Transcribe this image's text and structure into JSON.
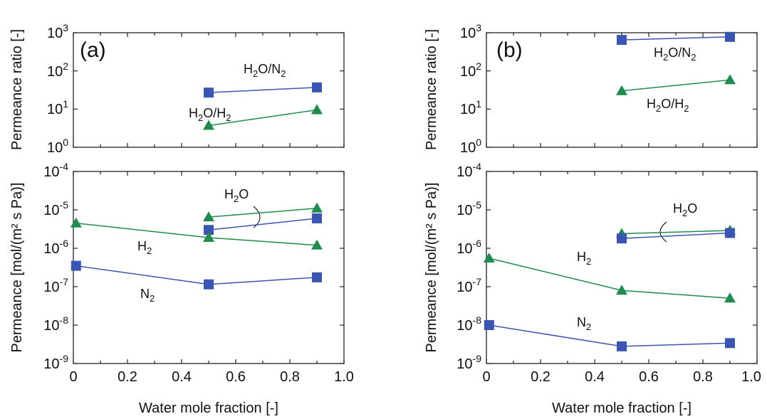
{
  "chart_data": [
    {
      "panel": "(a)",
      "type": "line",
      "xlabel": "Water mole fraction [-]",
      "xlim": [
        0,
        1.0
      ],
      "xticks": [
        "0",
        "0.2",
        "0.4",
        "0.6",
        "0.8",
        "1.0"
      ],
      "subplots": [
        {
          "name": "ratio",
          "ylabel": "Permeance ratio [-]",
          "yscale": "log",
          "ylim": [
            1,
            1000
          ],
          "series": [
            {
              "name": "H2O/N2",
              "label_main": "H",
              "label_sub1": "2",
              "label_mid": "O/N",
              "label_sub2": "2",
              "marker": "square",
              "color": "#3b55b3",
              "x": [
                0.5,
                0.9
              ],
              "y": [
                27,
                37
              ]
            },
            {
              "name": "H2O/H2",
              "label_main": "H",
              "label_sub1": "2",
              "label_mid": "O/H",
              "label_sub2": "2",
              "marker": "triangle",
              "color": "#1f8b4c",
              "x": [
                0.5,
                0.9
              ],
              "y": [
                3.7,
                9.5
              ]
            }
          ]
        },
        {
          "name": "permeance",
          "ylabel": "Permeance [mol/(m² s Pa)]",
          "yscale": "log",
          "ylim": [
            1e-09,
            0.0001
          ],
          "series": [
            {
              "name": "H2O (triangle)",
              "marker": "triangle",
              "color": "#1f8b4c",
              "x": [
                0.5,
                0.9
              ],
              "y": [
                6.5e-06,
                1.1e-05
              ]
            },
            {
              "name": "H2O (square)",
              "marker": "square",
              "color": "#3b55b3",
              "x": [
                0.5,
                0.9
              ],
              "y": [
                3e-06,
                6e-06
              ]
            },
            {
              "name": "H2",
              "marker": "triangle",
              "color": "#1f8b4c",
              "x": [
                0.01,
                0.5,
                0.9
              ],
              "y": [
                4.5e-06,
                1.9e-06,
                1.2e-06
              ]
            },
            {
              "name": "N2",
              "marker": "square",
              "color": "#3b55b3",
              "x": [
                0.01,
                0.5,
                0.9
              ],
              "y": [
                3.5e-07,
                1.15e-07,
                1.75e-07
              ]
            }
          ],
          "annotations": {
            "h2o": "H2O",
            "h2": "H2",
            "n2": "N2"
          }
        }
      ]
    },
    {
      "panel": "(b)",
      "type": "line",
      "xlabel": "Water mole fraction [-]",
      "xlim": [
        0,
        1.0
      ],
      "xticks": [
        "0",
        "0.2",
        "0.4",
        "0.6",
        "0.8",
        "1.0"
      ],
      "subplots": [
        {
          "name": "ratio",
          "ylabel": "Permeance ratio [-]",
          "yscale": "log",
          "ylim": [
            1,
            1000
          ],
          "series": [
            {
              "name": "H2O/N2",
              "marker": "square",
              "color": "#3b55b3",
              "x": [
                0.5,
                0.9
              ],
              "y": [
                650,
                780
              ]
            },
            {
              "name": "H2O/H2",
              "marker": "triangle",
              "color": "#1f8b4c",
              "x": [
                0.5,
                0.9
              ],
              "y": [
                30,
                58
              ]
            }
          ]
        },
        {
          "name": "permeance",
          "ylabel": "Permeance [mol/(m² s Pa)]",
          "yscale": "log",
          "ylim": [
            1e-09,
            0.0001
          ],
          "series": [
            {
              "name": "H2O (triangle)",
              "marker": "triangle",
              "color": "#1f8b4c",
              "x": [
                0.5,
                0.9
              ],
              "y": [
                2.4e-06,
                2.9e-06
              ]
            },
            {
              "name": "H2O (square)",
              "marker": "square",
              "color": "#3b55b3",
              "x": [
                0.5,
                0.9
              ],
              "y": [
                1.8e-06,
                2.5e-06
              ]
            },
            {
              "name": "H2",
              "marker": "triangle",
              "color": "#1f8b4c",
              "x": [
                0.01,
                0.5,
                0.9
              ],
              "y": [
                5.5e-07,
                8e-08,
                5e-08
              ]
            },
            {
              "name": "N2",
              "marker": "square",
              "color": "#3b55b3",
              "x": [
                0.01,
                0.5,
                0.9
              ],
              "y": [
                1e-08,
                2.8e-09,
                3.4e-09
              ]
            }
          ]
        }
      ]
    }
  ]
}
